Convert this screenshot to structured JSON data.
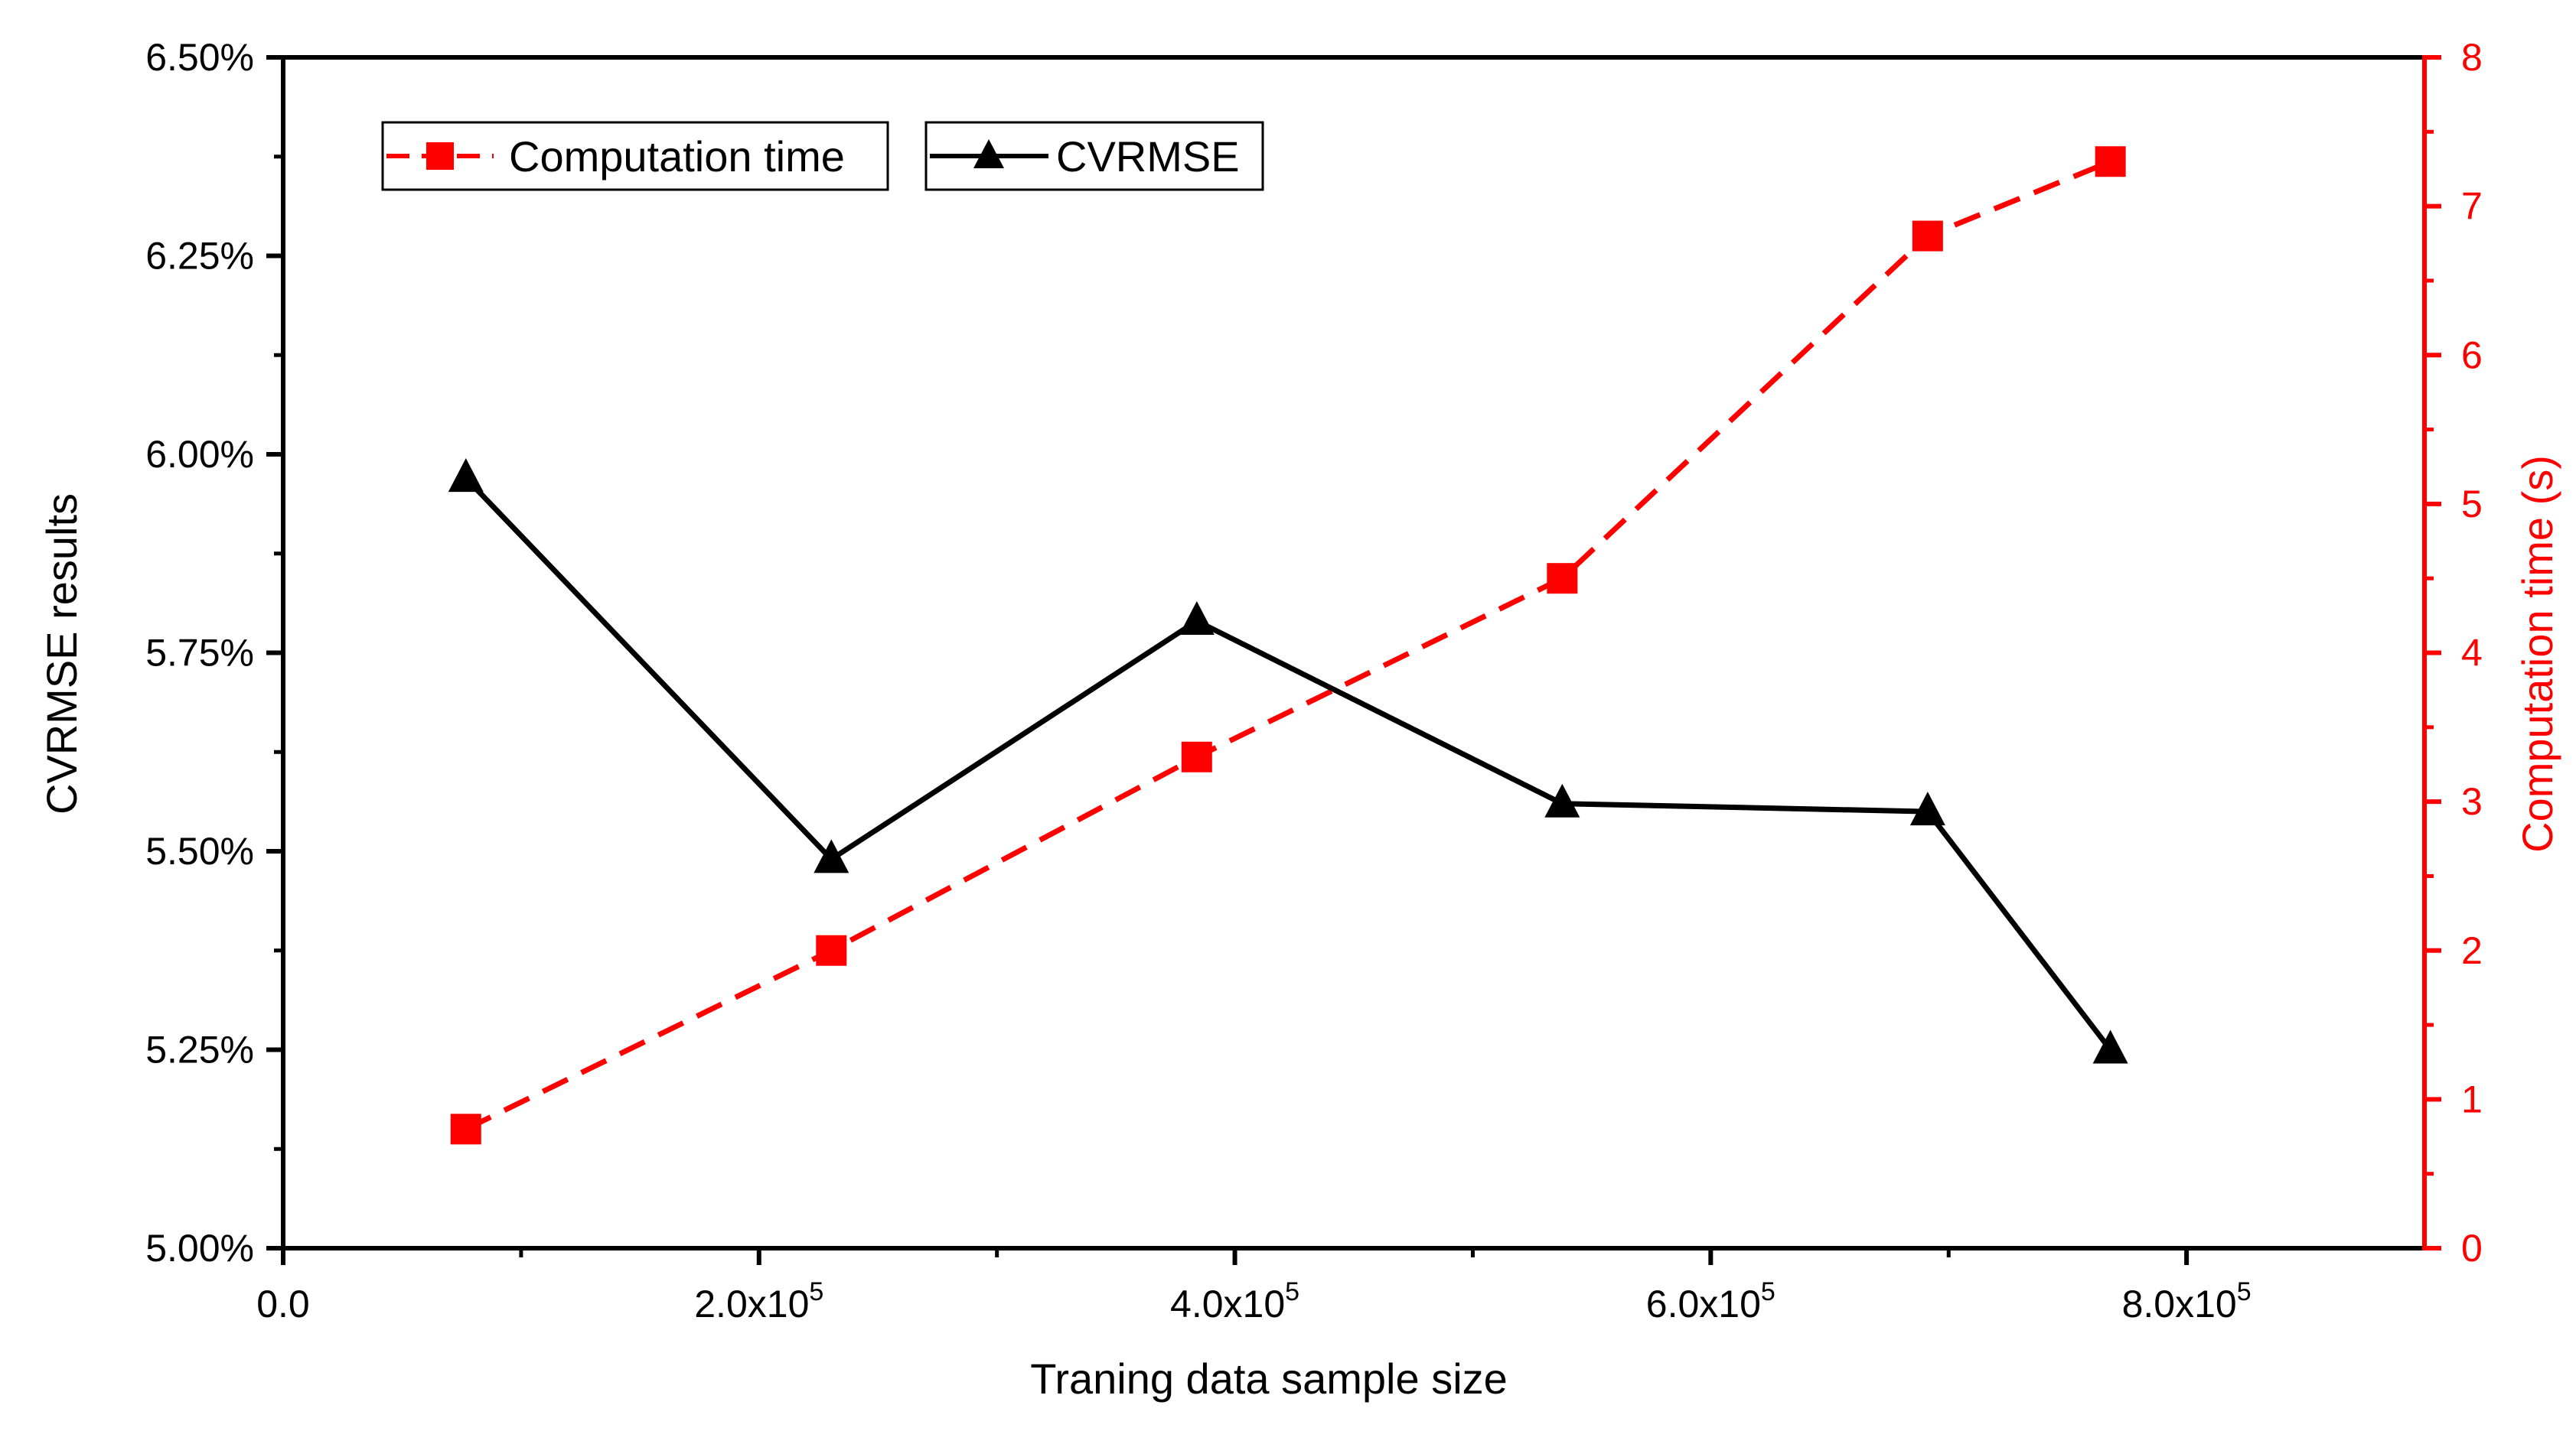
{
  "chart_data": {
    "type": "line",
    "title": "",
    "xlabel": "Traning data sample size",
    "ylabel_left": "CVRMSE results",
    "ylabel_right": "Computation time (s)",
    "xlim": [
      0,
      900000
    ],
    "ylim_left": [
      5.0,
      6.5
    ],
    "ylim_right": [
      0,
      8
    ],
    "x_ticks": [
      {
        "value": 0,
        "base": "0.0",
        "exp": ""
      },
      {
        "value": 200000,
        "base": "2.0x10",
        "exp": "5"
      },
      {
        "value": 400000,
        "base": "4.0x10",
        "exp": "5"
      },
      {
        "value": 600000,
        "base": "6.0x10",
        "exp": "5"
      },
      {
        "value": 800000,
        "base": "8.0x10",
        "exp": "5"
      }
    ],
    "y_left_ticks": [
      {
        "value": 5.0,
        "label": "5.00%"
      },
      {
        "value": 5.25,
        "label": "5.25%"
      },
      {
        "value": 5.5,
        "label": "5.50%"
      },
      {
        "value": 5.75,
        "label": "5.75%"
      },
      {
        "value": 6.0,
        "label": "6.00%"
      },
      {
        "value": 6.25,
        "label": "6.25%"
      },
      {
        "value": 6.5,
        "label": "6.50%"
      }
    ],
    "y_right_ticks": [
      {
        "value": 0,
        "label": "0"
      },
      {
        "value": 1,
        "label": "1"
      },
      {
        "value": 2,
        "label": "2"
      },
      {
        "value": 3,
        "label": "3"
      },
      {
        "value": 4,
        "label": "4"
      },
      {
        "value": 5,
        "label": "5"
      },
      {
        "value": 6,
        "label": "6"
      },
      {
        "value": 7,
        "label": "7"
      },
      {
        "value": 8,
        "label": "8"
      }
    ],
    "legend_position": "top-left",
    "series": [
      {
        "name": "Computation time",
        "axis": "right",
        "marker": "square",
        "line_style": "dashed",
        "color": "#ff0000",
        "x": [
          76800,
          230400,
          384000,
          537600,
          691200,
          768000
        ],
        "values": [
          0.8,
          2.0,
          3.3,
          4.5,
          6.8,
          7.3
        ]
      },
      {
        "name": "CVRMSE",
        "axis": "left",
        "marker": "triangle",
        "line_style": "solid",
        "color": "#000000",
        "x": [
          76800,
          230400,
          384000,
          537600,
          691200,
          768000
        ],
        "values": [
          5.97,
          5.49,
          5.79,
          5.56,
          5.55,
          5.25
        ]
      }
    ]
  }
}
